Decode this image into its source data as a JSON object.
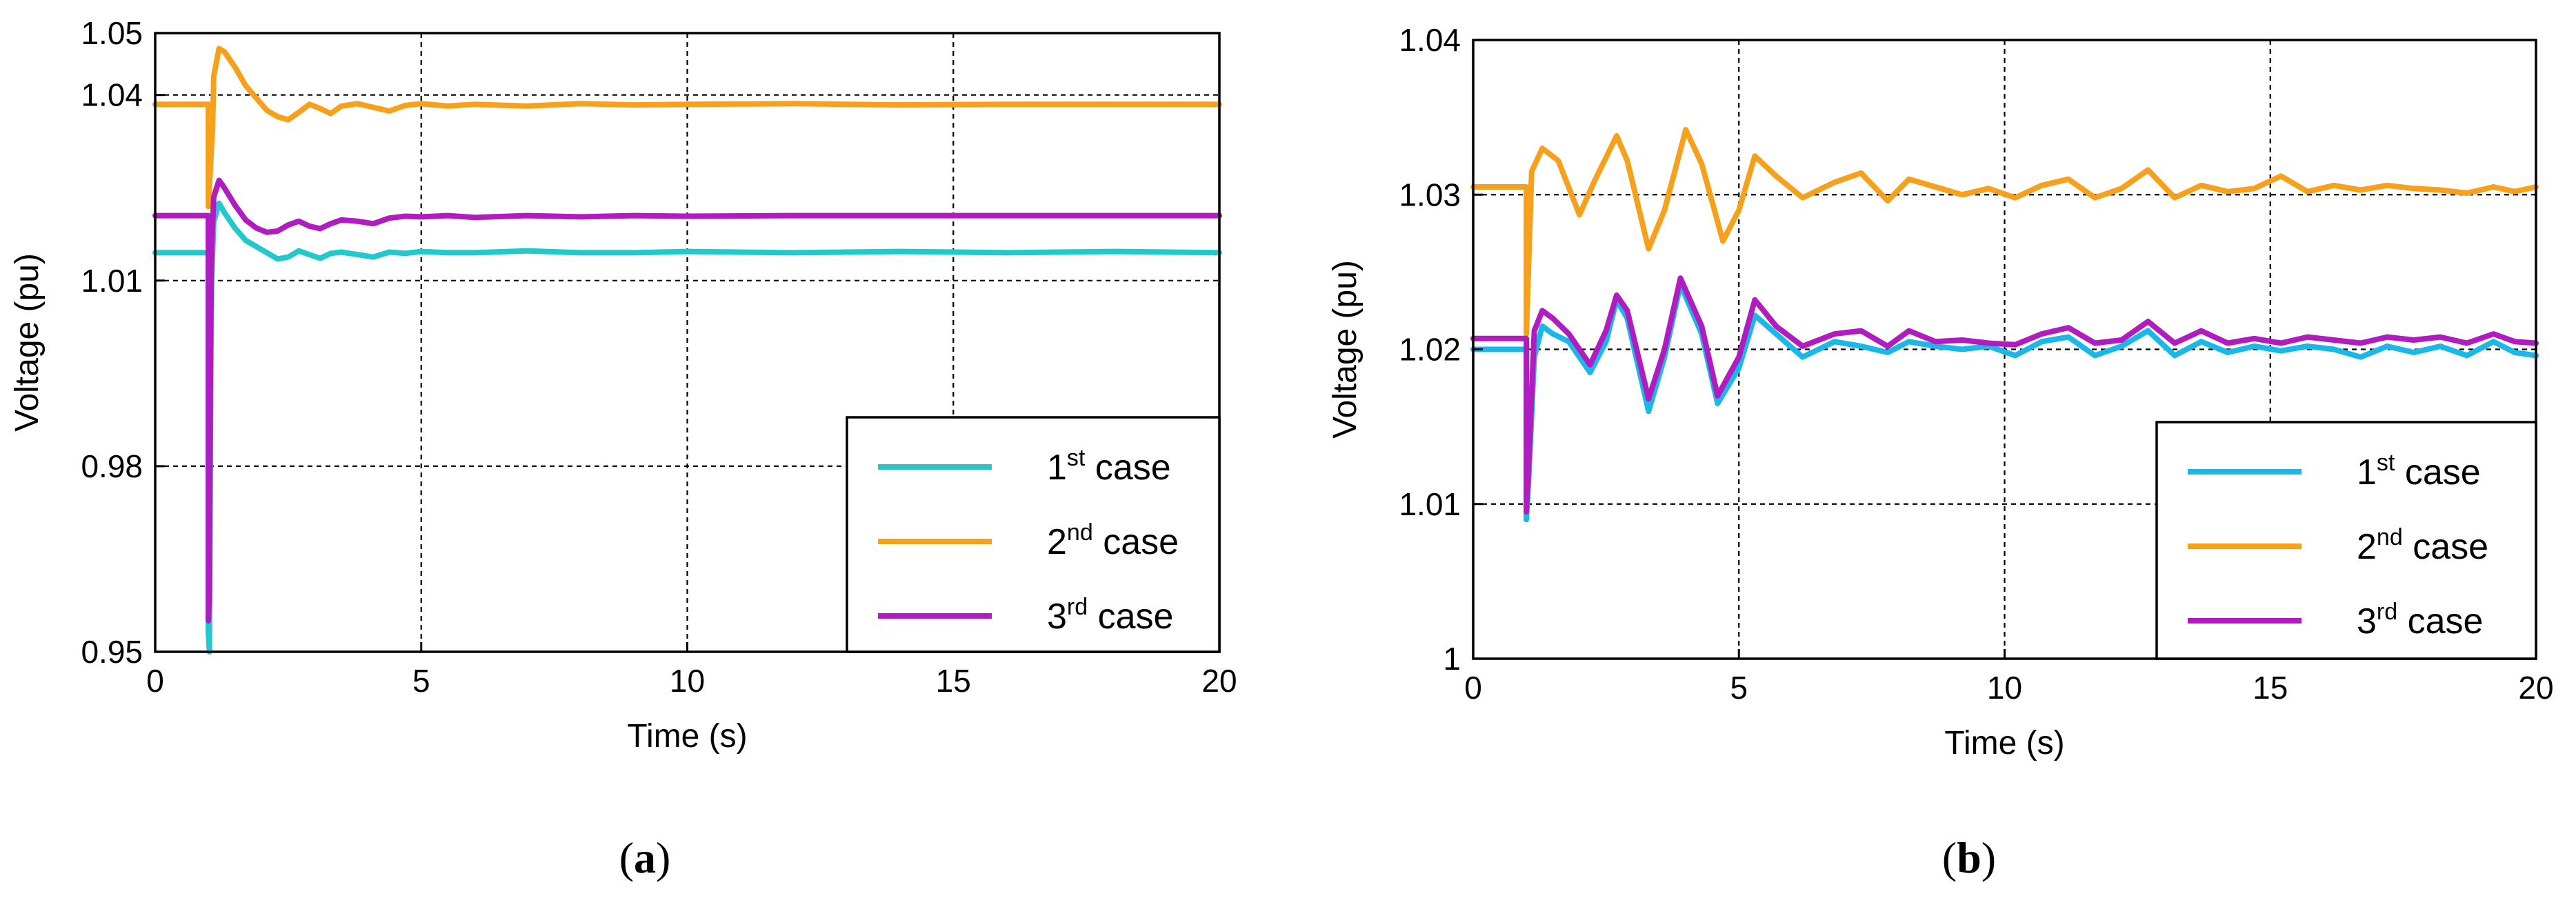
{
  "chart_data": [
    {
      "type": "line",
      "panel": "a",
      "caption": {
        "open": "(",
        "letter": "a",
        "close": ")"
      },
      "xlabel": "Time (s)",
      "ylabel": "Voltage (pu)",
      "xlim": [
        0,
        20
      ],
      "ylim": [
        0.95,
        1.05
      ],
      "xticks": [
        0,
        5,
        10,
        15,
        20
      ],
      "xtick_labels": [
        "0",
        "5",
        "10",
        "15",
        "20"
      ],
      "yticks": [
        0.95,
        0.98,
        1.01,
        1.04,
        1.05
      ],
      "ytick_labels": [
        "0.95",
        "0.98",
        "1.01",
        "1.04",
        "1.05"
      ],
      "grid": true,
      "legend_position": "bottom-right",
      "series": [
        {
          "name": "1st case",
          "label_base": "1",
          "label_sup": "st",
          "label_rest": " case",
          "color": "#22c8cc",
          "x": [
            0,
            1.0,
            1.0,
            1.02,
            1.04,
            1.06,
            1.1,
            1.2,
            1.3,
            1.5,
            1.7,
            1.9,
            2.1,
            2.3,
            2.5,
            2.7,
            2.9,
            3.1,
            3.3,
            3.5,
            3.8,
            4.1,
            4.4,
            4.7,
            5.0,
            5.5,
            6,
            7,
            8,
            9,
            10,
            12,
            14,
            16,
            18,
            20
          ],
          "y": [
            1.0145,
            1.0145,
            0.953,
            0.95,
            0.99,
            1.01,
            1.0195,
            1.0225,
            1.021,
            1.0185,
            1.0165,
            1.0155,
            1.0145,
            1.0135,
            1.0138,
            1.0148,
            1.0142,
            1.0136,
            1.0144,
            1.0146,
            1.0142,
            1.0138,
            1.0146,
            1.0144,
            1.0147,
            1.0145,
            1.0145,
            1.0148,
            1.0145,
            1.0145,
            1.0147,
            1.0145,
            1.0147,
            1.0145,
            1.0147,
            1.0145
          ]
        },
        {
          "name": "2nd case",
          "label_base": "2",
          "label_sup": "nd",
          "label_rest": " case",
          "color": "#f7a01b",
          "x": [
            0,
            1.0,
            1.0,
            1.08,
            1.1,
            1.2,
            1.3,
            1.5,
            1.7,
            1.9,
            2.1,
            2.3,
            2.5,
            2.7,
            2.9,
            3.1,
            3.3,
            3.5,
            3.8,
            4.1,
            4.4,
            4.7,
            5.0,
            5.5,
            6,
            7,
            8,
            9,
            10,
            12,
            14,
            16,
            18,
            20
          ],
          "y": [
            1.0385,
            1.0385,
            1.022,
            1.035,
            1.043,
            1.0475,
            1.047,
            1.0445,
            1.0415,
            1.0395,
            1.0375,
            1.0365,
            1.036,
            1.0372,
            1.0385,
            1.0378,
            1.037,
            1.0382,
            1.0386,
            1.038,
            1.0374,
            1.0383,
            1.0386,
            1.0382,
            1.0385,
            1.0382,
            1.0386,
            1.0384,
            1.0385,
            1.0386,
            1.0384,
            1.0385,
            1.0385,
            1.0385
          ]
        },
        {
          "name": "3rd case",
          "label_base": "3",
          "label_sup": "rd",
          "label_rest": " case",
          "color": "#b01cc0",
          "x": [
            0,
            1.0,
            1.0,
            1.02,
            1.04,
            1.06,
            1.1,
            1.2,
            1.3,
            1.5,
            1.7,
            1.9,
            2.1,
            2.3,
            2.5,
            2.7,
            2.9,
            3.1,
            3.3,
            3.5,
            3.8,
            4.1,
            4.4,
            4.7,
            5.0,
            5.5,
            6,
            7,
            8,
            9,
            10,
            12,
            14,
            16,
            18,
            20
          ],
          "y": [
            1.0205,
            1.0205,
            0.955,
            0.96,
            1.0,
            1.015,
            1.0235,
            1.0262,
            1.025,
            1.0222,
            1.0198,
            1.0185,
            1.0178,
            1.018,
            1.019,
            1.0196,
            1.0188,
            1.0184,
            1.0192,
            1.0198,
            1.0196,
            1.0192,
            1.0201,
            1.0204,
            1.0203,
            1.0205,
            1.0202,
            1.0205,
            1.0203,
            1.0205,
            1.0204,
            1.0205,
            1.0205,
            1.0205,
            1.0205,
            1.0205
          ]
        }
      ]
    },
    {
      "type": "line",
      "panel": "b",
      "caption": {
        "open": "(",
        "letter": "b",
        "close": ")"
      },
      "xlabel": "Time (s)",
      "ylabel": "Voltage (pu)",
      "xlim": [
        0,
        20
      ],
      "ylim": [
        1.0,
        1.04
      ],
      "xticks": [
        0,
        5,
        10,
        15,
        20
      ],
      "xtick_labels": [
        "0",
        "5",
        "10",
        "15",
        "20"
      ],
      "yticks": [
        1.0,
        1.01,
        1.02,
        1.03,
        1.04
      ],
      "ytick_labels": [
        "1",
        "1.01",
        "1.02",
        "1.03",
        "1.04"
      ],
      "grid": true,
      "legend_position": "bottom-right",
      "series": [
        {
          "name": "1st case",
          "label_base": "1",
          "label_sup": "st",
          "label_rest": " case",
          "color": "#1ab8e8",
          "x": [
            0,
            1.0,
            1.0,
            1.05,
            1.15,
            1.3,
            1.5,
            1.8,
            2.2,
            2.5,
            2.7,
            2.9,
            3.3,
            3.6,
            3.9,
            4.3,
            4.6,
            5.0,
            5.3,
            5.7,
            6.2,
            6.8,
            7.3,
            7.8,
            8.2,
            8.7,
            9.2,
            9.7,
            10.2,
            10.7,
            11.2,
            11.7,
            12.2,
            12.7,
            13.2,
            13.7,
            14.2,
            14.7,
            15.2,
            15.7,
            16.2,
            16.7,
            17.2,
            17.7,
            18.2,
            18.7,
            19.2,
            19.6,
            20
          ],
          "y": [
            1.02,
            1.02,
            1.009,
            1.012,
            1.0195,
            1.0215,
            1.021,
            1.0205,
            1.0185,
            1.0205,
            1.0232,
            1.022,
            1.016,
            1.0195,
            1.0242,
            1.021,
            1.0165,
            1.0188,
            1.0222,
            1.021,
            1.0195,
            1.0205,
            1.0202,
            1.0198,
            1.0205,
            1.0202,
            1.02,
            1.0202,
            1.0196,
            1.0205,
            1.0208,
            1.0196,
            1.0202,
            1.0212,
            1.0196,
            1.0205,
            1.0198,
            1.0202,
            1.0199,
            1.0202,
            1.02,
            1.0195,
            1.0202,
            1.0198,
            1.0202,
            1.0196,
            1.0205,
            1.0198,
            1.0196
          ]
        },
        {
          "name": "2nd case",
          "label_base": "2",
          "label_sup": "nd",
          "label_rest": " case",
          "color": "#f7a01b",
          "x": [
            0,
            1.0,
            1.0,
            1.1,
            1.3,
            1.6,
            2.0,
            2.3,
            2.7,
            2.9,
            3.3,
            3.6,
            4.0,
            4.3,
            4.7,
            5.0,
            5.3,
            5.7,
            6.2,
            6.8,
            7.3,
            7.8,
            8.2,
            8.7,
            9.2,
            9.7,
            10.2,
            10.7,
            11.2,
            11.7,
            12.2,
            12.7,
            13.2,
            13.7,
            14.2,
            14.7,
            15.2,
            15.7,
            16.2,
            16.7,
            17.2,
            17.7,
            18.2,
            18.7,
            19.2,
            19.6,
            20
          ],
          "y": [
            1.0305,
            1.0305,
            1.021,
            1.0315,
            1.033,
            1.0322,
            1.0287,
            1.031,
            1.0338,
            1.0322,
            1.0265,
            1.029,
            1.0342,
            1.032,
            1.027,
            1.029,
            1.0325,
            1.0312,
            1.0298,
            1.0308,
            1.0314,
            1.0296,
            1.031,
            1.0305,
            1.03,
            1.0304,
            1.0298,
            1.0306,
            1.031,
            1.0298,
            1.0304,
            1.0316,
            1.0298,
            1.0306,
            1.0302,
            1.0304,
            1.0312,
            1.0302,
            1.0306,
            1.0303,
            1.0306,
            1.0304,
            1.0303,
            1.0301,
            1.0305,
            1.0302,
            1.0305
          ]
        },
        {
          "name": "3rd case",
          "label_base": "3",
          "label_sup": "rd",
          "label_rest": " case",
          "color": "#b01cc0",
          "x": [
            0,
            1.0,
            1.0,
            1.05,
            1.15,
            1.3,
            1.5,
            1.8,
            2.2,
            2.5,
            2.7,
            2.9,
            3.3,
            3.6,
            3.9,
            4.3,
            4.6,
            5.0,
            5.3,
            5.7,
            6.2,
            6.8,
            7.3,
            7.8,
            8.2,
            8.7,
            9.2,
            9.7,
            10.2,
            10.7,
            11.2,
            11.7,
            12.2,
            12.7,
            13.2,
            13.7,
            14.2,
            14.7,
            15.2,
            15.7,
            16.2,
            16.7,
            17.2,
            17.7,
            18.2,
            18.7,
            19.2,
            19.6,
            20
          ],
          "y": [
            1.0207,
            1.0207,
            1.0095,
            1.013,
            1.0212,
            1.0225,
            1.022,
            1.021,
            1.019,
            1.0212,
            1.0235,
            1.0225,
            1.0168,
            1.02,
            1.0246,
            1.0215,
            1.017,
            1.0195,
            1.0232,
            1.0215,
            1.0202,
            1.021,
            1.0212,
            1.0202,
            1.0212,
            1.0205,
            1.0206,
            1.0204,
            1.0203,
            1.021,
            1.0214,
            1.0204,
            1.0206,
            1.0218,
            1.0204,
            1.0212,
            1.0204,
            1.0207,
            1.0204,
            1.0208,
            1.0206,
            1.0204,
            1.0208,
            1.0206,
            1.0208,
            1.0204,
            1.021,
            1.0205,
            1.0204
          ]
        }
      ]
    }
  ]
}
